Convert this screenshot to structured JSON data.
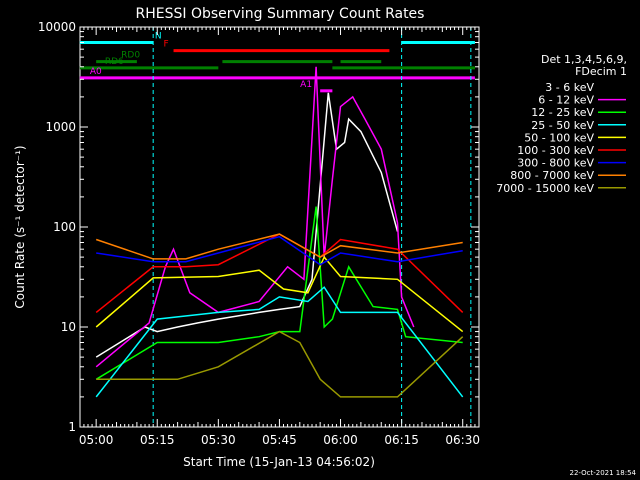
{
  "chart_data": {
    "type": "line",
    "title": "RHESSI Observing Summary Count Rates",
    "xlabel": "Start Time (15-Jan-13 04:56:02)",
    "ylabel": "Count Rate (s⁻¹ detector⁻¹)",
    "y_scale": "log",
    "ylim": [
      1,
      10000
    ],
    "xlim": [
      "04:56:02",
      "06:34:00"
    ],
    "x_ticks": [
      "05:00",
      "05:15",
      "05:30",
      "05:45",
      "06:00",
      "06:15",
      "06:30"
    ],
    "y_ticks": [
      "1",
      "10",
      "100",
      "1000",
      "10000"
    ],
    "legend_title": [
      "Det 1,3,4,5,6,9,",
      "FDecim 1"
    ],
    "legend_position": "right",
    "series": [
      {
        "name": "3 - 6 keV",
        "color": "#ffffff",
        "legend_color": "#000000",
        "x": [
          "05:00",
          "05:12",
          "05:15",
          "05:20",
          "05:25",
          "05:30",
          "05:40",
          "05:45",
          "05:50",
          "05:53",
          "05:57",
          "05:59",
          "06:01",
          "06:02",
          "06:05",
          "06:10",
          "06:14"
        ],
        "y": [
          5,
          10,
          9,
          10,
          11,
          12,
          14,
          15,
          16,
          30,
          2200,
          600,
          700,
          1200,
          900,
          350,
          90
        ]
      },
      {
        "name": "6 - 12 keV",
        "color": "#ff00ff",
        "x": [
          "05:00",
          "05:13",
          "05:17",
          "05:19",
          "05:23",
          "05:30",
          "05:40",
          "05:47",
          "05:51",
          "05:54",
          "05:56",
          "05:58",
          "06:00",
          "06:03",
          "06:06",
          "06:10",
          "06:14",
          "06:15",
          "06:18"
        ],
        "y": [
          4,
          11,
          40,
          60,
          22,
          14,
          18,
          40,
          30,
          4000,
          50,
          300,
          1600,
          2000,
          1200,
          600,
          110,
          20,
          10
        ]
      },
      {
        "name": "12 - 25 keV",
        "color": "#00ff00",
        "x": [
          "05:00",
          "05:15",
          "05:30",
          "05:40",
          "05:45",
          "05:50",
          "05:54",
          "05:56",
          "05:58",
          "06:02",
          "06:08",
          "06:14",
          "06:16",
          "06:30"
        ],
        "y": [
          3,
          7,
          7,
          8,
          9,
          9,
          160,
          10,
          12,
          40,
          16,
          15,
          8,
          7
        ]
      },
      {
        "name": "25 - 50 keV",
        "color": "#00ffff",
        "x": [
          "05:00",
          "05:15",
          "05:30",
          "05:40",
          "05:45",
          "05:52",
          "05:56",
          "06:00",
          "06:14",
          "06:30"
        ],
        "y": [
          2,
          12,
          14,
          15,
          20,
          18,
          25,
          14,
          14,
          2
        ]
      },
      {
        "name": "50 - 100 keV",
        "color": "#ffff00",
        "x": [
          "05:00",
          "05:14",
          "05:30",
          "05:40",
          "05:46",
          "05:52",
          "05:56",
          "06:00",
          "06:14",
          "06:30"
        ],
        "y": [
          10,
          31,
          32,
          37,
          24,
          22,
          50,
          32,
          30,
          9
        ]
      },
      {
        "name": "100 - 300 keV",
        "color": "#ff0000",
        "x": [
          "05:00",
          "05:14",
          "05:22",
          "05:30",
          "05:45",
          "05:55",
          "06:00",
          "06:14",
          "06:30"
        ],
        "y": [
          14,
          40,
          40,
          42,
          85,
          50,
          75,
          60,
          14
        ]
      },
      {
        "name": "300 - 800 keV",
        "color": "#0000ff",
        "x": [
          "05:00",
          "05:14",
          "05:22",
          "05:30",
          "05:45",
          "05:55",
          "06:00",
          "06:14",
          "06:30"
        ],
        "y": [
          55,
          45,
          45,
          55,
          80,
          42,
          55,
          45,
          58
        ]
      },
      {
        "name": "800 - 7000 keV",
        "color": "#ff8000",
        "x": [
          "05:00",
          "05:14",
          "05:22",
          "05:30",
          "05:45",
          "05:55",
          "06:00",
          "06:14",
          "06:30"
        ],
        "y": [
          75,
          48,
          48,
          60,
          85,
          50,
          65,
          55,
          70
        ]
      },
      {
        "name": "7000 - 15000 keV",
        "color": "#999900",
        "x": [
          "05:00",
          "05:14",
          "05:20",
          "05:30",
          "05:45",
          "05:50",
          "05:55",
          "06:00",
          "06:14",
          "06:30"
        ],
        "y": [
          3,
          3,
          3,
          4,
          9,
          7,
          3,
          2,
          2,
          8
        ]
      }
    ],
    "state_bars": [
      {
        "label": "N",
        "color": "#00ffff",
        "y": 7000,
        "segments": [
          [
            "04:56",
            "05:14"
          ],
          [
            "06:15",
            "06:33"
          ]
        ]
      },
      {
        "label": "F",
        "color": "#ff0000",
        "y": 5800,
        "segments": [
          [
            "05:19",
            "06:12"
          ]
        ]
      },
      {
        "label": "RD0",
        "color": "#008000",
        "y": 4500,
        "segments": [
          [
            "05:00",
            "05:10"
          ],
          [
            "05:31",
            "05:58"
          ],
          [
            "06:00",
            "06:10"
          ]
        ]
      },
      {
        "label": "RD6",
        "color": "#008000",
        "y": 3900,
        "segments": [
          [
            "04:56",
            "05:30"
          ],
          [
            "05:58",
            "06:33"
          ]
        ]
      },
      {
        "label": "A0",
        "color": "#ff00ff",
        "y": 3100,
        "segments": [
          [
            "04:56",
            "06:33"
          ]
        ]
      },
      {
        "label": "A1",
        "color": "#ff00ff",
        "y": 2300,
        "segments": [
          [
            "05:55",
            "05:58"
          ]
        ]
      }
    ],
    "vertical_markers": [
      "05:14",
      "06:15",
      "06:32"
    ],
    "grid": false
  },
  "footer": {
    "date_stamp": "22-Oct-2021 18:54"
  }
}
